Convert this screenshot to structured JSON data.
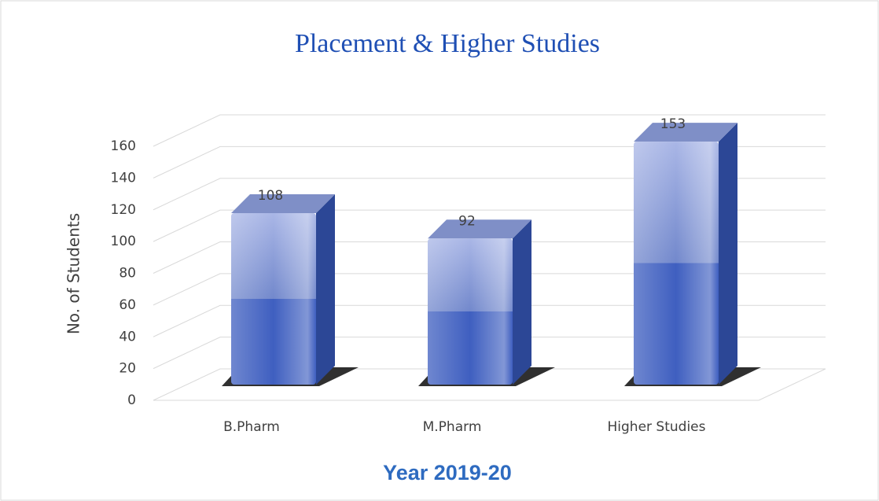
{
  "chart_data": {
    "type": "bar",
    "title": "Placement & Higher Studies",
    "categories": [
      "B.Pharm",
      "M.Pharm",
      "Higher Studies"
    ],
    "values": [
      108,
      92,
      153
    ],
    "color": "#3f5fc0",
    "ylim": [
      0,
      160
    ],
    "yticks": [
      0,
      20,
      40,
      60,
      80,
      100,
      120,
      140,
      160
    ],
    "ylabel": "No. of Students",
    "xlabel": "Year 2019-20",
    "grid": true
  }
}
